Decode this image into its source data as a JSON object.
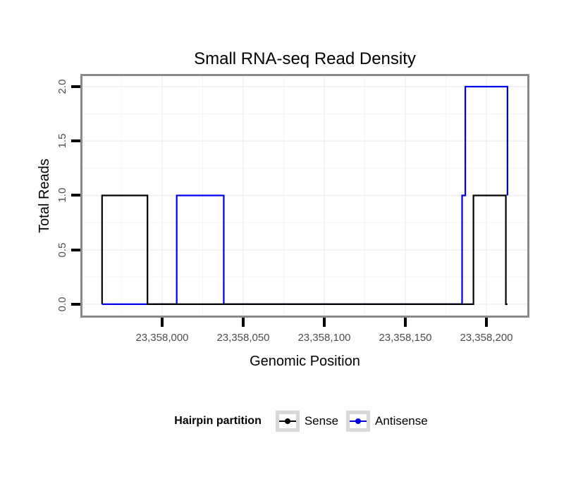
{
  "title": "Small RNA-seq Read Density",
  "x_axis": {
    "label": "Genomic Position",
    "tick_labels": [
      "23,358,000",
      "23,358,050",
      "23,358,100",
      "23,358,150",
      "23,358,200"
    ]
  },
  "y_axis": {
    "label": "Total Reads",
    "tick_labels": [
      "0.0",
      "0.5",
      "1.0",
      "1.5",
      "2.0"
    ]
  },
  "legend": {
    "title": "Hairpin partition",
    "entries": [
      {
        "label": "Sense",
        "color": "#000000"
      },
      {
        "label": "Antisense",
        "color": "#0000EE"
      }
    ]
  },
  "colors": {
    "sense_line": "#000000",
    "antisense_line": "#0000EE",
    "panel_border": "#8A8A8A",
    "major_grid": "#F0F0F0",
    "minor_grid": "#F6F6F6",
    "tick_label": "#4D4D4D"
  },
  "chart_data": {
    "type": "line",
    "subtype": "step",
    "title": "Small RNA-seq Read Density",
    "xlabel": "Genomic Position",
    "ylabel": "Total Reads",
    "x_ticks": [
      23358000,
      23358050,
      23358100,
      23358150,
      23358200
    ],
    "x_minor_ticks": [
      23357975,
      23358025,
      23358075,
      23358125,
      23358175
    ],
    "y_ticks": [
      0,
      0.5,
      1.0,
      1.5,
      2.0
    ],
    "y_minor_ticks": [
      0.25,
      0.75,
      1.25,
      1.75
    ],
    "xlim": [
      23357950.9,
      23358225.2
    ],
    "ylim": [
      -0.104,
      2.097
    ],
    "grid": true,
    "legend_position": "bottom",
    "series": [
      {
        "name": "Sense",
        "color": "#000000",
        "points": [
          [
            23357963,
            0
          ],
          [
            23357963,
            1
          ],
          [
            23357991,
            1
          ],
          [
            23357991,
            0
          ],
          [
            23358192,
            0
          ],
          [
            23358192,
            1
          ],
          [
            23358212,
            1
          ],
          [
            23358212,
            0
          ],
          [
            23358213,
            0
          ]
        ]
      },
      {
        "name": "Antisense",
        "color": "#0000EE",
        "points": [
          [
            23357963,
            0
          ],
          [
            23358009,
            0
          ],
          [
            23358009,
            1
          ],
          [
            23358038,
            1
          ],
          [
            23358038,
            0
          ],
          [
            23358185,
            0
          ],
          [
            23358185,
            1
          ],
          [
            23358187,
            1
          ],
          [
            23358187,
            2
          ],
          [
            23358213,
            2
          ],
          [
            23358213,
            1
          ]
        ]
      }
    ]
  }
}
